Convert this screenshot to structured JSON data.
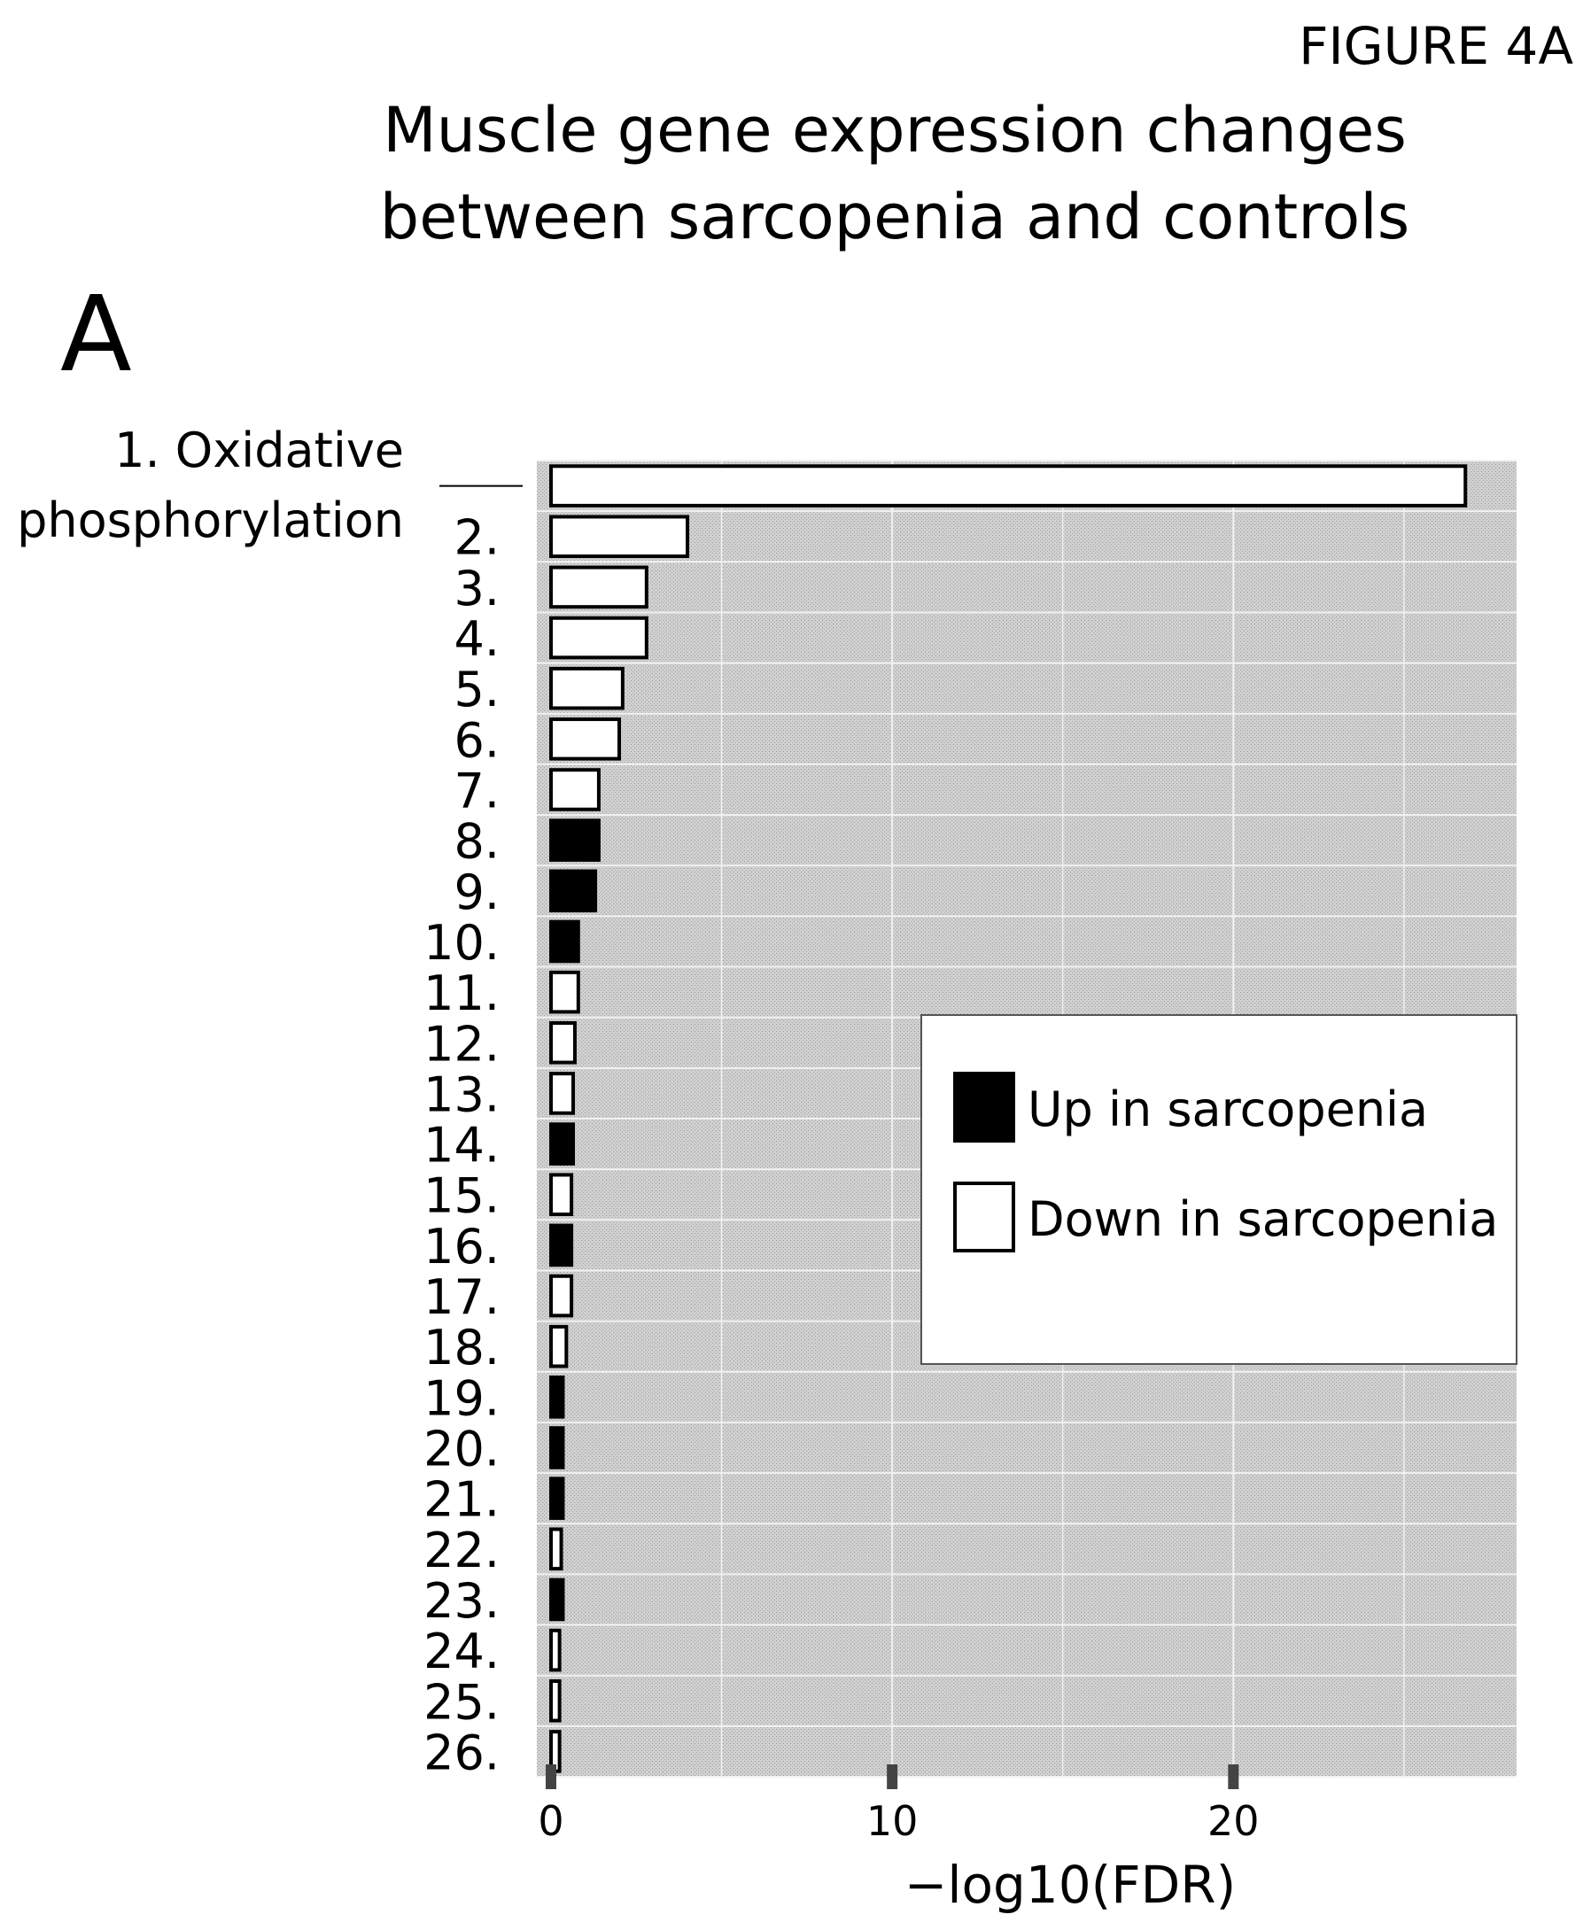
{
  "figure_label": "FIGURE 4A",
  "panel_letter": "A",
  "chart_data": {
    "type": "bar",
    "orientation": "horizontal",
    "title": "Muscle gene expression changes between sarcopenia and controls",
    "title_lines": [
      "Muscle gene expression changes",
      "between sarcopenia and controls"
    ],
    "xlabel": "−log10(FDR)",
    "ylabel": "",
    "xlim": [
      0,
      28.3
    ],
    "xticks": [
      0,
      10,
      20
    ],
    "xtick_labels": [
      "0",
      "10",
      "20"
    ],
    "grid": true,
    "legend_position": "right-middle",
    "categories": [
      "1. Oxidative phosphorylation",
      "2.",
      "3.",
      "4.",
      "5.",
      "6.",
      "7.",
      "8.",
      "9.",
      "10.",
      "11.",
      "12.",
      "13.",
      "14.",
      "15.",
      "16.",
      "17.",
      "18.",
      "19.",
      "20.",
      "21.",
      "22.",
      "23.",
      "24.",
      "25.",
      "26."
    ],
    "category_lines": [
      [
        "1. Oxidative",
        "phosphorylation"
      ],
      [
        "2."
      ],
      [
        "3."
      ],
      [
        "4."
      ],
      [
        "5."
      ],
      [
        "6."
      ],
      [
        "7."
      ],
      [
        "8."
      ],
      [
        "9."
      ],
      [
        "10."
      ],
      [
        "11."
      ],
      [
        "12."
      ],
      [
        "13."
      ],
      [
        "14."
      ],
      [
        "15."
      ],
      [
        "16."
      ],
      [
        "17."
      ],
      [
        "18."
      ],
      [
        "19."
      ],
      [
        "20."
      ],
      [
        "21."
      ],
      [
        "22."
      ],
      [
        "23."
      ],
      [
        "24."
      ],
      [
        "25."
      ],
      [
        "26."
      ]
    ],
    "values": [
      26.8,
      4.0,
      2.8,
      2.8,
      2.1,
      2.0,
      1.4,
      1.4,
      1.3,
      0.8,
      0.8,
      0.7,
      0.65,
      0.65,
      0.6,
      0.6,
      0.6,
      0.45,
      0.35,
      0.35,
      0.35,
      0.3,
      0.35,
      0.25,
      0.25,
      0.25
    ],
    "direction": [
      "down",
      "down",
      "down",
      "down",
      "down",
      "down",
      "down",
      "up",
      "up",
      "up",
      "down",
      "down",
      "down",
      "up",
      "down",
      "up",
      "down",
      "down",
      "up",
      "up",
      "up",
      "down",
      "up",
      "down",
      "down",
      "down"
    ],
    "series": [
      {
        "key": "up",
        "name": "Up in sarcopenia",
        "color": "#000000"
      },
      {
        "key": "down",
        "name": "Down in sarcopenia",
        "color": "#ffffff"
      }
    ],
    "colors": {
      "panel_background": "#c9c9c9",
      "grid": "#f2f2f2",
      "bar_outline": "#000000"
    }
  }
}
